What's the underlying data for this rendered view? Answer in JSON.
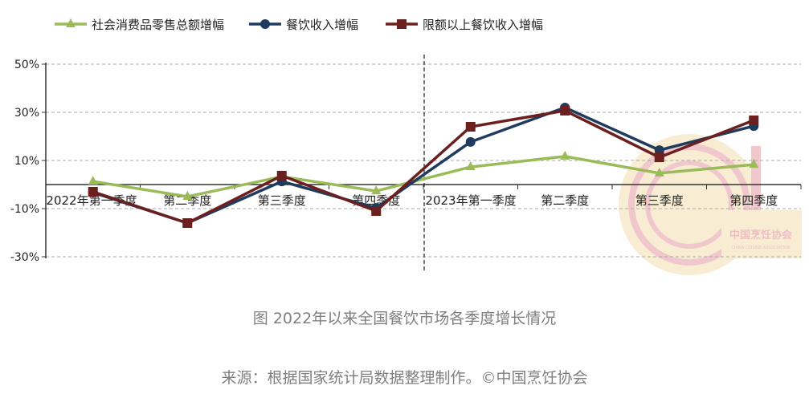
{
  "chart_data": {
    "type": "line",
    "title": "",
    "categories": [
      "2022年第一季度",
      "第二季度",
      "第三季度",
      "第四季度",
      "2023年第一季度",
      "第二季度",
      "第三季度",
      "第四季度"
    ],
    "yticks": [
      "50%",
      "30%",
      "10%",
      "-10%",
      "-30%"
    ],
    "ytick_values": [
      50,
      30,
      10,
      -10,
      -30
    ],
    "ylim": [
      -30,
      50
    ],
    "grid": true,
    "legend_position": "top",
    "series": [
      {
        "name": "社会消费品零售总额增幅",
        "color": "#9bbb59",
        "marker": "triangle",
        "values": [
          1.3,
          -5,
          3.3,
          -2.7,
          7.3,
          11.7,
          4.7,
          8.3
        ]
      },
      {
        "name": "餐饮收入增幅",
        "color": "#1f3b5e",
        "marker": "circle",
        "values": [
          -3.3,
          -16,
          1.3,
          -9.7,
          17.7,
          32,
          14.3,
          24.3
        ]
      },
      {
        "name": "限额以上餐饮收入增幅",
        "color": "#6b1f1f",
        "marker": "square",
        "values": [
          -3,
          -16,
          3.7,
          -11,
          24,
          30.7,
          11.3,
          26.7
        ]
      }
    ]
  },
  "caption": "图 2022年以来全国餐饮市场各季度增长情况",
  "source": "来源：根据国家统计局数据整理制作。©中国烹饪协会",
  "watermark": {
    "text": "中国烹饪协会",
    "subtext": "CHINA CUISINE ASSOCIATION"
  }
}
